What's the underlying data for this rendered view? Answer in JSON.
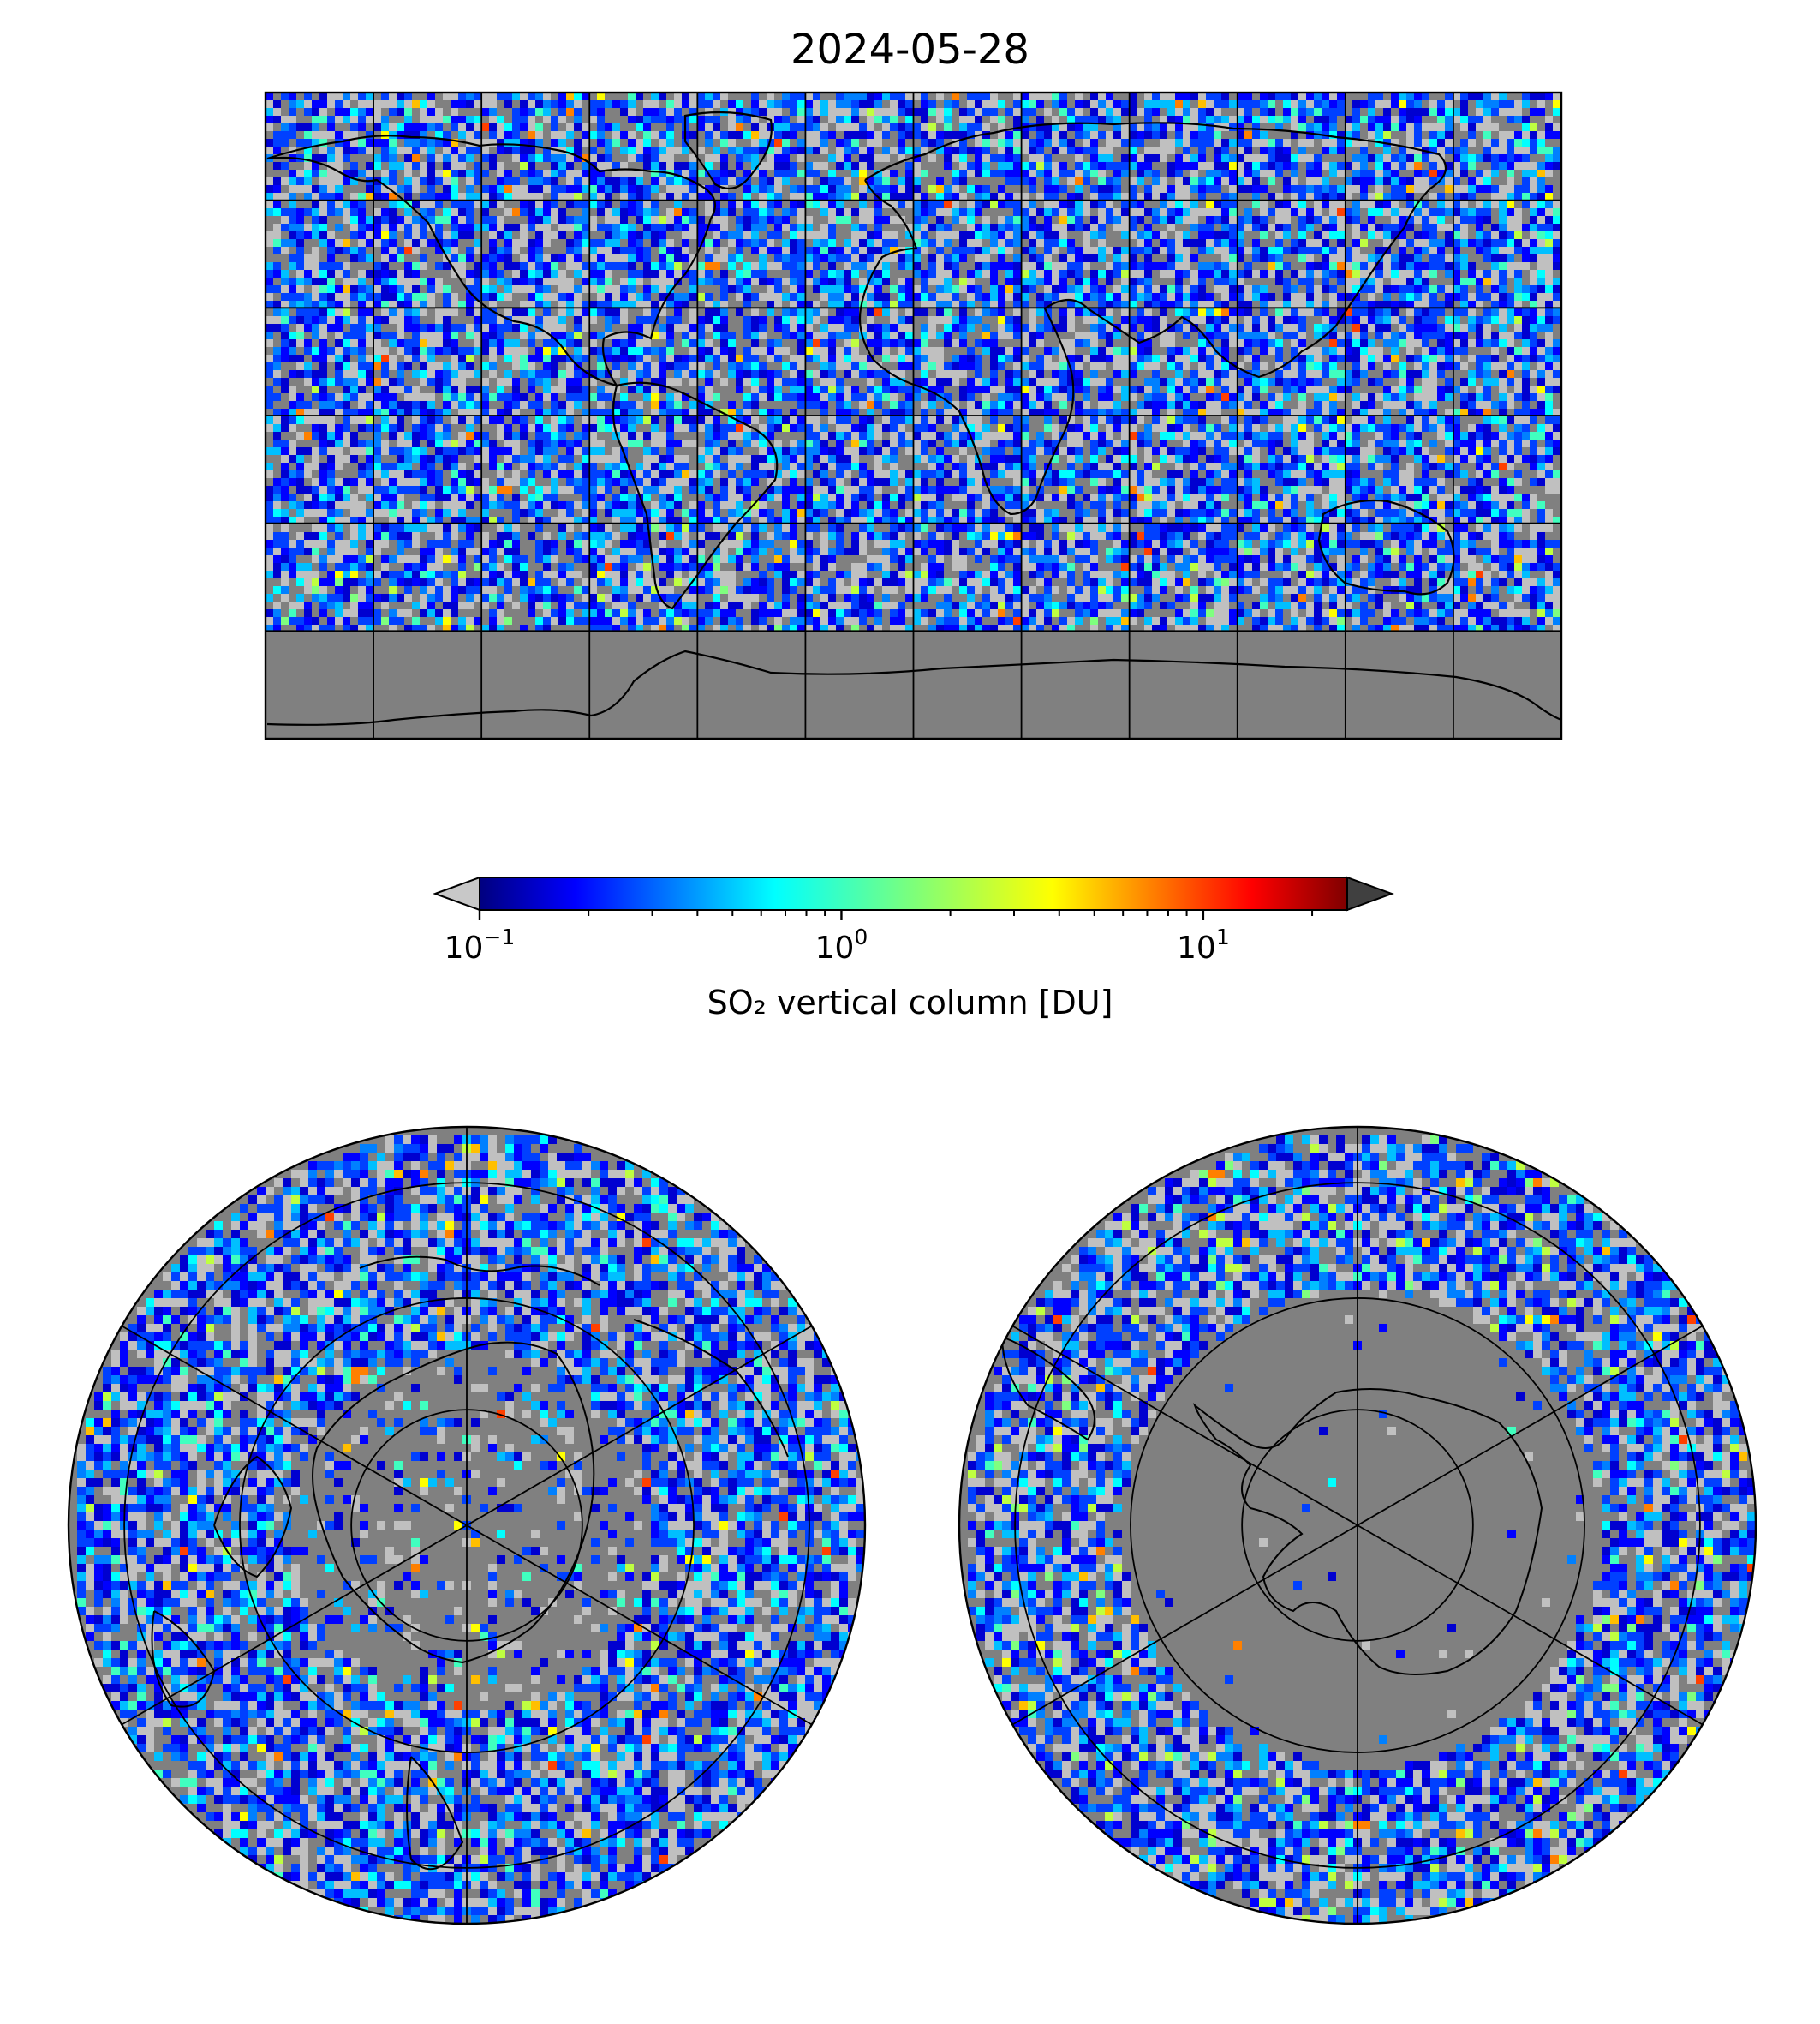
{
  "title": "2024-05-28",
  "colorbar": {
    "label": "SO₂ vertical column [DU]",
    "scale": "log",
    "range": [
      0.1,
      25
    ],
    "colormap": "jet",
    "extend": "both",
    "under_color": "#c8c8c8",
    "over_color": "#404040",
    "tick_labels": [
      {
        "value": 0.1,
        "base": "10",
        "exp": "−1"
      },
      {
        "value": 1,
        "base": "10",
        "exp": "0"
      },
      {
        "value": 10,
        "base": "10",
        "exp": "1"
      }
    ]
  },
  "colors": {
    "no_data": "#808080",
    "below_range": "#c0c0c0",
    "grid": "#000000",
    "coastline": "#000000"
  },
  "maps": [
    {
      "name": "global",
      "projection": "plate-carree"
    },
    {
      "name": "north-polar",
      "projection": "north-polar-stereographic"
    },
    {
      "name": "south-polar",
      "projection": "south-polar-stereographic"
    }
  ]
}
